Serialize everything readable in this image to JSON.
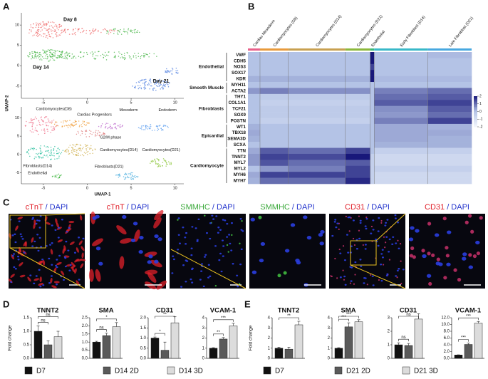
{
  "panel_labels": [
    "A",
    "B",
    "C",
    "D",
    "E"
  ],
  "umap": {
    "xlabel": "UMAP-1",
    "ylabel": "UMAP-2",
    "plots": [
      {
        "xlim": [
          -7.5,
          11
        ],
        "ylim": [
          -8,
          13
        ],
        "xticks": [
          -5,
          0,
          5,
          10
        ],
        "yticks": [
          10,
          5,
          0,
          -5
        ],
        "labels": [
          "Day 8",
          "Day 14",
          "Day 21"
        ]
      },
      {
        "xlim": [
          -7.5,
          11
        ],
        "ylim": [
          -8,
          13
        ],
        "xticks": [
          -5,
          0,
          5,
          10
        ],
        "yticks": [
          10,
          5,
          0,
          -5
        ],
        "labels": [
          "Cardiomyocytes(D8)",
          "Cardiac Progenitors",
          "Mesoderm",
          "Endoderm",
          "G2/M phase",
          "Cardiomyocytes(D14)",
          "Fibroblasts(D14)",
          "Cardiomyocytes(D21)",
          "Endothelial",
          "Fibroblasts(D21)"
        ]
      }
    ]
  },
  "heatmap": {
    "columns": [
      {
        "label": "Cardiac Mesoderm",
        "color": "#e8608a"
      },
      {
        "label": "Cardiomyocytes (D8)",
        "color": "#e89a3c"
      },
      {
        "label": "Cardiomyocytes (D14)",
        "color": "#c8a050"
      },
      {
        "label": "Cardiomyocytes (D21)",
        "color": "#8cb83c"
      },
      {
        "label": "Endothelial",
        "color": "#3cb878"
      },
      {
        "label": "Early Fibroblast (D14)",
        "color": "#38b8c8"
      },
      {
        "label": "Late Fibroblast (D21)",
        "color": "#48a8e0"
      }
    ],
    "gene_groups": [
      {
        "label": "Endothelial",
        "genes": [
          "VWF",
          "CDH5",
          "NOS3",
          "SOX17",
          "KDR"
        ]
      },
      {
        "label": "Smooth Muscle",
        "genes": [
          "MYH11",
          "ACTA2"
        ]
      },
      {
        "label": "Fibroblasts",
        "genes": [
          "THY1",
          "COL1A1",
          "TCF21",
          "SOX9",
          "POSTN"
        ]
      },
      {
        "label": "Epicardial",
        "genes": [
          "WT1",
          "TBX18",
          "SEMA3D",
          "SCXA"
        ]
      },
      {
        "label": "Cardiomyocyte",
        "genes": [
          "TTN",
          "TNNT2",
          "MYL7",
          "MYL2",
          "MYH6",
          "MYH7"
        ]
      }
    ],
    "values": [
      [
        0,
        0,
        0,
        0,
        2,
        0,
        0.1
      ],
      [
        0,
        0,
        0,
        0,
        2,
        0,
        0
      ],
      [
        0,
        0,
        0,
        0,
        1.5,
        0,
        0
      ],
      [
        0,
        0,
        0,
        0,
        2,
        0,
        0
      ],
      [
        0.2,
        0.2,
        0.2,
        0.2,
        2,
        0.1,
        0.1
      ],
      [
        0,
        0,
        0,
        0,
        0,
        0,
        0
      ],
      [
        0.5,
        0.8,
        0.6,
        0.6,
        0,
        0.8,
        1
      ],
      [
        0,
        -0.3,
        -0.3,
        -0.3,
        0,
        1,
        1.2
      ],
      [
        0,
        -0.5,
        -0.5,
        -0.5,
        0,
        1.2,
        1.5
      ],
      [
        0,
        -0.3,
        -0.3,
        -0.3,
        0,
        0.6,
        1.2
      ],
      [
        0,
        -0.3,
        -0.3,
        -0.3,
        0,
        0.5,
        1
      ],
      [
        0,
        -0.5,
        -0.5,
        -0.5,
        0,
        0.8,
        1.5
      ],
      [
        0.2,
        0,
        0,
        0,
        0,
        0.3,
        0.2
      ],
      [
        0.3,
        0,
        0,
        0,
        0,
        0.3,
        0.3
      ],
      [
        0.2,
        0,
        0,
        0,
        0,
        0.3,
        0.2
      ],
      [
        0,
        0,
        0,
        0,
        0,
        0.2,
        0.2
      ],
      [
        0.3,
        1.2,
        1,
        1.5,
        0,
        -0.5,
        -0.5
      ],
      [
        0.5,
        1.5,
        1.4,
        2,
        -0.5,
        -0.8,
        -0.8
      ],
      [
        0.5,
        1.3,
        1,
        1.2,
        -0.5,
        -0.8,
        -0.8
      ],
      [
        0,
        0.5,
        0.8,
        1.5,
        -0.5,
        -0.5,
        -0.5
      ],
      [
        0.3,
        1.5,
        1.5,
        1.5,
        -0.5,
        -0.8,
        -0.8
      ],
      [
        0.2,
        1,
        1,
        1.8,
        -0.5,
        -0.8,
        -0.8
      ]
    ],
    "scale_ticks": [
      2,
      1,
      0,
      -1,
      -2
    ]
  },
  "micrographs": [
    {
      "stain": "cTnT",
      "counterstain": "/ DAPI",
      "stain_color": "#e0202a"
    },
    {
      "stain": "cTnT",
      "counterstain": "/ DAPI",
      "stain_color": "#e0202a"
    },
    {
      "stain": "SMMHC",
      "counterstain": "/ DAPI",
      "stain_color": "#3aa83a"
    },
    {
      "stain": "SMMHC",
      "counterstain": "/ DAPI",
      "stain_color": "#3aa83a"
    },
    {
      "stain": "CD31",
      "counterstain": "/ DAPI",
      "stain_color": "#e0202a"
    },
    {
      "stain": "CD31",
      "counterstain": "/ DAPI",
      "stain_color": "#e0202a"
    }
  ],
  "legends": [
    [
      {
        "name": "D7",
        "color": "#111111"
      },
      {
        "name": "D14 2D",
        "color": "#5a5a5a"
      },
      {
        "name": "D14 3D",
        "color": "#dcdcdc"
      }
    ],
    [
      {
        "name": "D7",
        "color": "#111111"
      },
      {
        "name": "D21 2D",
        "color": "#5a5a5a"
      },
      {
        "name": "D21 3D",
        "color": "#dcdcdc"
      }
    ]
  ],
  "chart_data": [
    {
      "type": "bar",
      "title": "TNNT2",
      "ylabel": "Fold change",
      "values": [
        1.0,
        0.5,
        0.8
      ],
      "errors": [
        0.2,
        0.15,
        0.2
      ],
      "colors": [
        "#111111",
        "#5a5a5a",
        "#dcdcdc"
      ],
      "ylim": [
        0,
        1.5
      ],
      "yticks": [
        {
          "value": 0,
          "label": "0.0"
        },
        0.5,
        {
          "value": 1,
          "label": "1.0"
        },
        1.5
      ],
      "annotations": [
        "ns",
        "ns"
      ]
    },
    {
      "type": "bar",
      "title": "SMA",
      "values": [
        1.0,
        1.4,
        1.95
      ],
      "errors": [
        0.05,
        0.15,
        0.25
      ],
      "colors": [
        "#111111",
        "#5a5a5a",
        "#dcdcdc"
      ],
      "ylim": [
        0,
        2.5
      ],
      "yticks": [
        {
          "value": 0,
          "label": "0.0"
        },
        0.5,
        {
          "value": 1,
          "label": "1.0"
        },
        1.5,
        {
          "value": 2,
          "label": "2.0"
        },
        2.5
      ],
      "annotations": [
        "ns",
        "*"
      ]
    },
    {
      "type": "bar",
      "title": "CD31",
      "values": [
        1.0,
        0.4,
        1.75
      ],
      "errors": [
        0.05,
        0.4,
        0.3
      ],
      "colors": [
        "#111111",
        "#5a5a5a",
        "#dcdcdc"
      ],
      "ylim": [
        0,
        2.0
      ],
      "yticks": [
        {
          "value": 0,
          "label": "0.0"
        },
        0.5,
        {
          "value": 1,
          "label": "1.0"
        },
        1.5,
        {
          "value": 2,
          "label": "2.0"
        }
      ],
      "annotations": [
        "*",
        "**"
      ]
    },
    {
      "type": "bar",
      "title": "VCAM-1",
      "values": [
        1.0,
        1.9,
        3.2
      ],
      "errors": [
        0.05,
        0.15,
        0.25
      ],
      "colors": [
        "#111111",
        "#5a5a5a",
        "#dcdcdc"
      ],
      "ylim": [
        0,
        4
      ],
      "yticks": [
        0,
        1,
        2,
        3,
        4
      ],
      "annotations": [
        "**",
        "***"
      ]
    },
    {
      "type": "bar",
      "title": "TNNT2",
      "ylabel": "Fold change",
      "values": [
        1.0,
        0.9,
        3.3
      ],
      "errors": [
        0.1,
        0.2,
        0.35
      ],
      "colors": [
        "#111111",
        "#5a5a5a",
        "#dcdcdc"
      ],
      "ylim": [
        0,
        4
      ],
      "yticks": [
        0,
        1,
        2,
        3,
        4
      ],
      "annotations": [
        "**"
      ]
    },
    {
      "type": "bar",
      "title": "SMA",
      "values": [
        1.0,
        3.1,
        3.6
      ],
      "errors": [
        0.05,
        0.4,
        0.2
      ],
      "colors": [
        "#111111",
        "#5a5a5a",
        "#dcdcdc"
      ],
      "ylim": [
        0,
        4
      ],
      "yticks": [
        0,
        1,
        2,
        3,
        4
      ],
      "annotations": [
        "***",
        "***"
      ]
    },
    {
      "type": "bar",
      "title": "CD31",
      "values": [
        1.0,
        0.95,
        2.9
      ],
      "errors": [
        0.15,
        0.15,
        0.4
      ],
      "colors": [
        "#111111",
        "#5a5a5a",
        "#dcdcdc"
      ],
      "ylim": [
        0,
        3
      ],
      "yticks": [
        0,
        1,
        2,
        3
      ],
      "annotations": [
        "ns",
        "ns"
      ]
    },
    {
      "type": "bar",
      "title": "VCAM-1",
      "values": [
        1.0,
        4.1,
        10.4
      ],
      "errors": [
        0.05,
        0.4,
        0.5
      ],
      "colors": [
        "#111111",
        "#5a5a5a",
        "#dcdcdc"
      ],
      "ylim": [
        0,
        12
      ],
      "yticks": [
        {
          "value": 0,
          "label": "0.0"
        },
        {
          "value": 2,
          "label": "2.0"
        },
        {
          "value": 4,
          "label": "4.0"
        },
        {
          "value": 6,
          "label": "6.0"
        },
        {
          "value": 8,
          "label": "8.0"
        },
        {
          "value": 10,
          "label": "10.0"
        },
        {
          "value": 12,
          "label": "12.0"
        }
      ],
      "annotations": [
        "***",
        "***"
      ]
    }
  ]
}
